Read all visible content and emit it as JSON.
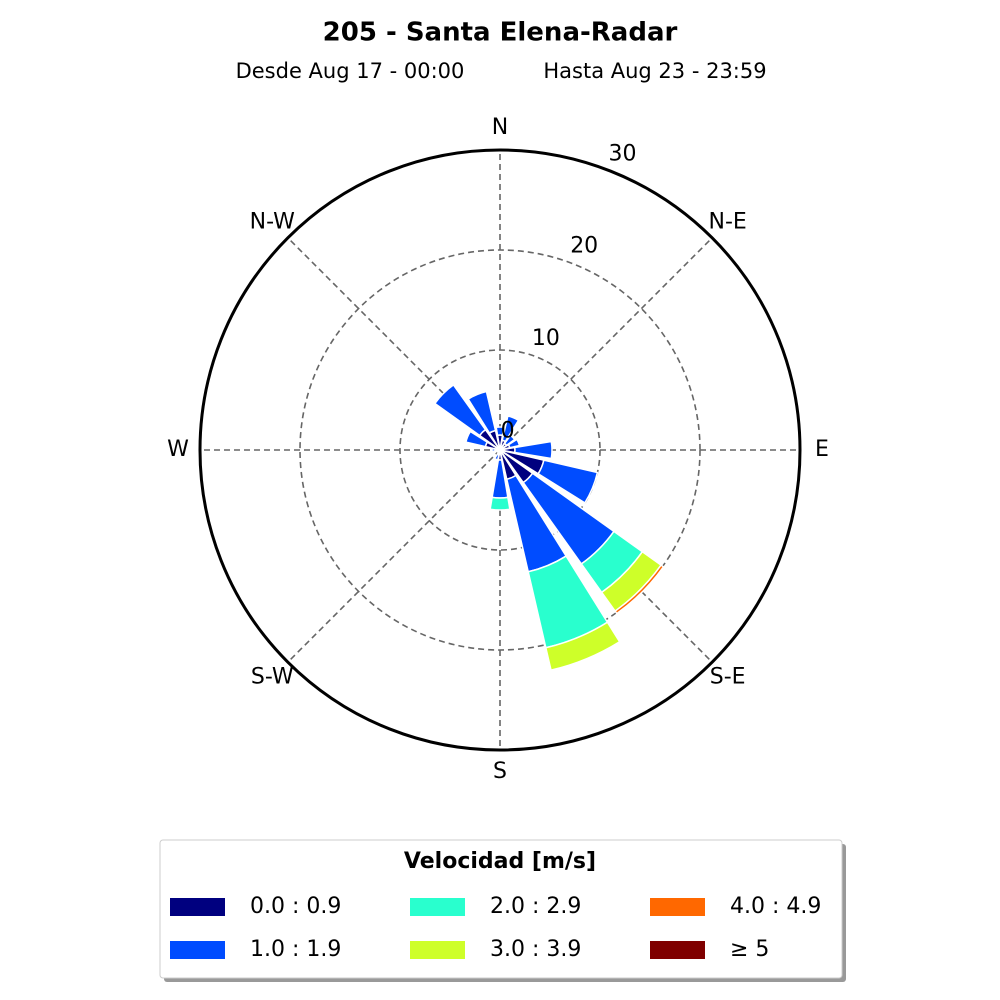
{
  "chart_data": {
    "type": "windrose",
    "title": "205 - Santa Elena-Radar",
    "subtitle": [
      "Desde Aug 17 - 00:00",
      "Hasta Aug 23 - 23:59"
    ],
    "categories": [
      "N",
      null,
      "N-E",
      null,
      "E",
      null,
      "S-E",
      null,
      "S",
      null,
      "S-W",
      null,
      "W",
      null,
      "N-W",
      null
    ],
    "rlim": [
      0,
      30
    ],
    "rticks": [
      0,
      10,
      20,
      30
    ],
    "grid": true,
    "legend_title": "Velocidad [m/s]",
    "legend_position": "bottom",
    "series": [
      {
        "name": "0.0 : 0.9",
        "color": "#00007f",
        "values": [
          1.5,
          1,
          0.8,
          1,
          1.5,
          4.5,
          4,
          3,
          1,
          0.5,
          0.3,
          0.3,
          0.5,
          1.5,
          2.5,
          2
        ]
      },
      {
        "name": "1.0 : 1.9",
        "color": "#004cff",
        "values": [
          0.8,
          2.5,
          1,
          1,
          3.7,
          5.5,
          10,
          9.5,
          3.8,
          0.5,
          0,
          0,
          0.3,
          2,
          5.5,
          4
        ]
      },
      {
        "name": "2.0 : 2.9",
        "color": "#29ffce",
        "values": [
          0,
          0,
          0,
          0,
          0,
          0,
          3.5,
          7.8,
          1.2,
          0,
          0,
          0,
          0,
          0,
          0,
          0
        ]
      },
      {
        "name": "3.0 : 3.9",
        "color": "#ceff29",
        "values": [
          0,
          0,
          0,
          0,
          0,
          0,
          2.3,
          2.3,
          0,
          0,
          0,
          0,
          0,
          0,
          0,
          0
        ]
      },
      {
        "name": "4.0 : 4.9",
        "color": "#ff6800",
        "values": [
          0,
          0,
          0,
          0,
          0,
          0,
          0.3,
          0,
          0,
          0,
          0,
          0,
          0,
          0,
          0,
          0
        ]
      },
      {
        "name": "≥ 5",
        "color": "#7f0000",
        "values": [
          0,
          0,
          0,
          0,
          0,
          0,
          0,
          0,
          0,
          0,
          0,
          0,
          0,
          0,
          0,
          0
        ]
      }
    ]
  }
}
